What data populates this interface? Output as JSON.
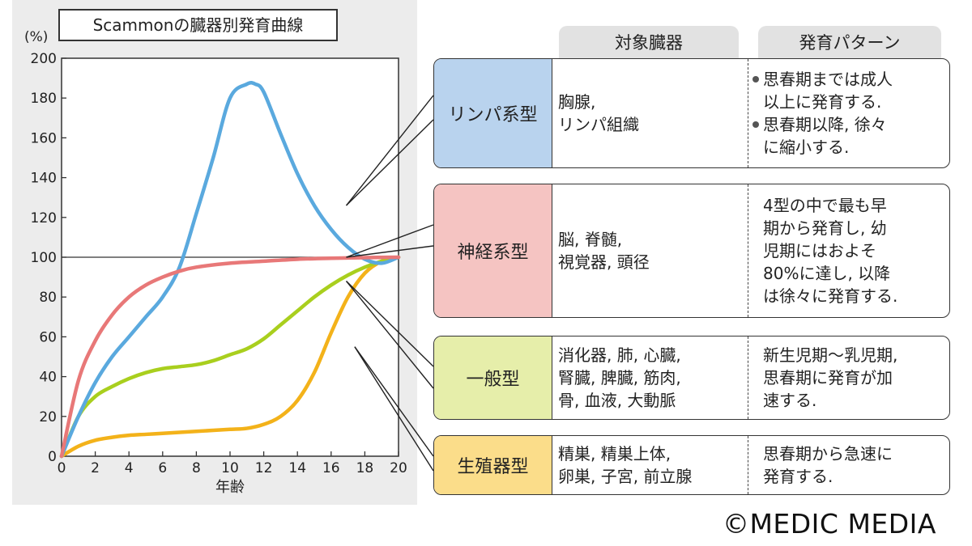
{
  "chart_data": {
    "type": "line",
    "title": "Scammonの臓器別発育曲線",
    "ylabel": "(%)",
    "xlabel": "年齢",
    "xlim": [
      0,
      20
    ],
    "ylim": [
      0,
      200
    ],
    "x_ticks": [
      "0",
      "2",
      "4",
      "6",
      "8",
      "10",
      "12",
      "14",
      "16",
      "18",
      "20"
    ],
    "y_ticks": [
      "0",
      "20",
      "40",
      "60",
      "80",
      "100",
      "120",
      "140",
      "160",
      "180",
      "200"
    ],
    "reference_line": 100,
    "grid": false,
    "series": [
      {
        "key": "lymph",
        "color": "#5aa9de",
        "x": [
          0,
          1,
          2,
          3,
          4,
          5,
          6,
          7,
          8,
          9,
          10,
          11,
          11.5,
          12,
          13,
          14,
          15,
          16,
          17,
          18,
          19,
          20
        ],
        "y": [
          0,
          20,
          37,
          50,
          60,
          70,
          80,
          95,
          122,
          150,
          180,
          187,
          187,
          183,
          162,
          142,
          126,
          114,
          105,
          99,
          97,
          100
        ]
      },
      {
        "key": "neural",
        "color": "#e87878",
        "x": [
          0,
          1,
          2,
          3,
          4,
          5,
          6,
          7,
          8,
          10,
          12,
          14,
          16,
          18,
          20
        ],
        "y": [
          0,
          38,
          58,
          71,
          80,
          86,
          90,
          93,
          95,
          97,
          98,
          99,
          99.5,
          99.8,
          100
        ]
      },
      {
        "key": "general",
        "color": "#a9cf1e",
        "x": [
          0,
          1,
          2,
          3,
          4,
          5,
          6,
          7,
          8,
          9,
          10,
          11,
          12,
          13,
          14,
          15,
          16,
          17,
          18,
          19,
          20
        ],
        "y": [
          0,
          20,
          30,
          35,
          39,
          42,
          44,
          45,
          46,
          48,
          51,
          54,
          59,
          66,
          73,
          80,
          86,
          91,
          95,
          98,
          100
        ]
      },
      {
        "key": "genital",
        "color": "#f3b21a",
        "x": [
          0,
          1,
          2,
          3,
          4,
          5,
          6,
          7,
          8,
          9,
          10,
          11,
          12,
          13,
          14,
          15,
          16,
          17,
          18,
          19,
          20
        ],
        "y": [
          0,
          5,
          8,
          9.5,
          10.5,
          11,
          11.5,
          12,
          12.5,
          13,
          13.5,
          14,
          16,
          20,
          28,
          42,
          62,
          80,
          92,
          98,
          100
        ]
      }
    ]
  },
  "table": {
    "headers": [
      "対象臓器",
      "発育パターン"
    ],
    "rows": [
      {
        "type": "リンパ系型",
        "color": "#b9d3ee",
        "organs": [
          "胸腺,",
          "リンパ組織"
        ],
        "pattern": [
          [
            "思春期までは成人",
            "以上に発育する."
          ],
          [
            "思春期以降, 徐々",
            "に縮小する."
          ]
        ]
      },
      {
        "type": "神経系型",
        "color": "#f5c4c2",
        "organs": [
          "脳, 脊髄,",
          "視覚器, 頭径"
        ],
        "pattern": [
          [
            "4型の中で最も早",
            "期から発育し, 幼",
            "児期にはおよそ",
            "80%に達し, 以降",
            "は徐々に発育する."
          ]
        ]
      },
      {
        "type": "一般型",
        "color": "#e6eeaa",
        "organs": [
          "消化器, 肺, 心臓,",
          "腎臓, 脾臓, 筋肉,",
          "骨, 血液, 大動脈"
        ],
        "pattern": [
          [
            "新生児期〜乳児期,",
            "思春期に発育が加",
            "速する."
          ]
        ]
      },
      {
        "type": "生殖器型",
        "color": "#fbdd8a",
        "organs": [
          "精巣, 精巣上体,",
          "卵巣, 子宮, 前立腺"
        ],
        "pattern": [
          [
            "思春期から急速に",
            "発育する."
          ]
        ]
      }
    ]
  },
  "credit": "©MEDIC MEDIA"
}
